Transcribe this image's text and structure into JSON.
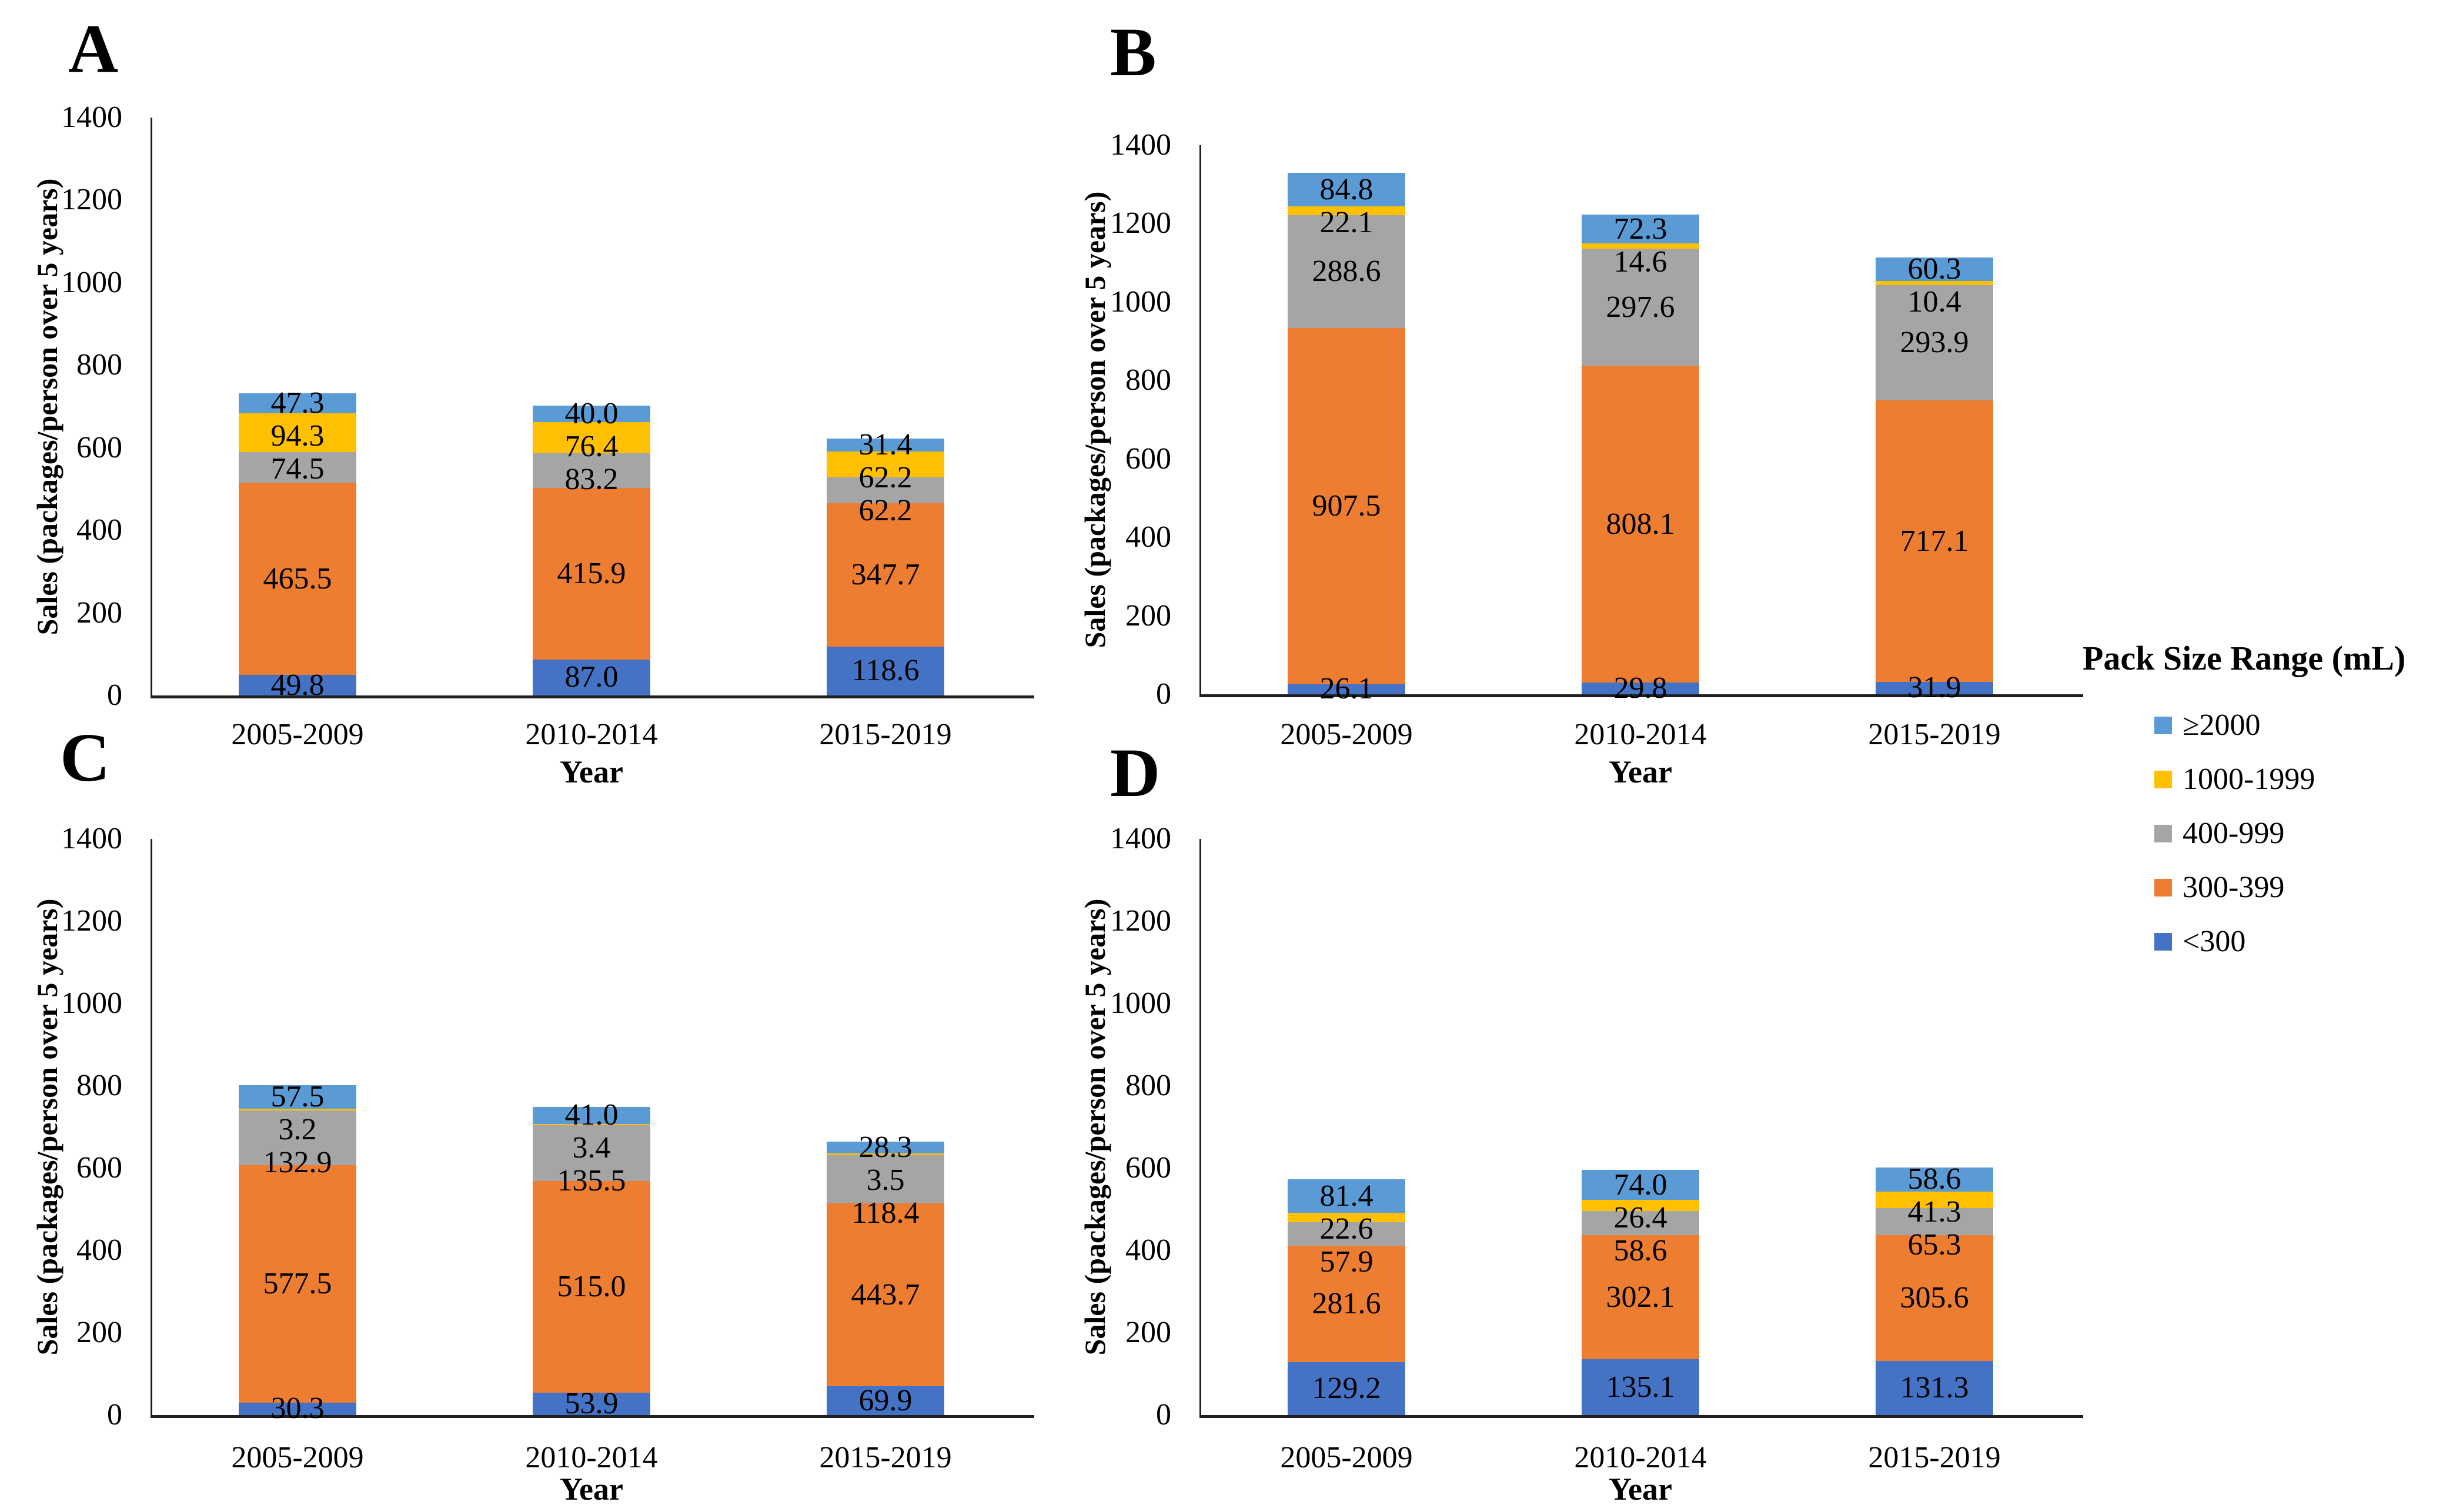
{
  "page": {
    "background": "#ffffff"
  },
  "legend": {
    "title": "Pack Size Range (mL)",
    "items": [
      {
        "label": "≥2000",
        "color": "#5B9BD5"
      },
      {
        "label": "1000-1999",
        "color": "#FFC000"
      },
      {
        "label": "400-999",
        "color": "#A5A5A5"
      },
      {
        "label": "300-399",
        "color": "#ED7D31"
      },
      {
        "label": "<300",
        "color": "#4472C4"
      }
    ]
  },
  "chart_data": [
    {
      "panel": "A",
      "type": "bar",
      "stacked": true,
      "stack_order": "first series at bottom",
      "categories": [
        "2005-2009",
        "2010-2014",
        "2015-2019"
      ],
      "series": [
        {
          "name": "<300",
          "color": "#4472C4",
          "values": [
            49.8,
            87.0,
            118.6
          ],
          "labels": [
            "49.8",
            "87.0",
            "118.6"
          ]
        },
        {
          "name": "300-399",
          "color": "#ED7D31",
          "values": [
            465.5,
            415.9,
            347.7
          ],
          "labels": [
            "465.5",
            "415.9",
            "347.7"
          ]
        },
        {
          "name": "400-999",
          "color": "#A5A5A5",
          "values": [
            74.5,
            83.2,
            62.2
          ],
          "labels": [
            "74.5",
            "83.2",
            "62.2"
          ]
        },
        {
          "name": "1000-1999",
          "color": "#FFC000",
          "values": [
            94.3,
            76.4,
            62.2
          ],
          "labels": [
            "94.3",
            "76.4",
            "62.2"
          ]
        },
        {
          "name": "≥2000",
          "color": "#5B9BD5",
          "values": [
            47.3,
            40.0,
            31.4
          ],
          "labels": [
            "47.3",
            "40.0",
            "31.4"
          ]
        }
      ],
      "xlabel": "Year",
      "ylabel": "Sales (packages/person over 5 years)",
      "ylim": [
        0,
        1400
      ],
      "ytick_step": 200,
      "ytick_labels": [
        "0",
        "200",
        "400",
        "600",
        "800",
        "1000",
        "1200",
        "1400"
      ],
      "grid": false,
      "legend_position": "outside-right"
    },
    {
      "panel": "B",
      "type": "bar",
      "stacked": true,
      "stack_order": "first series at bottom",
      "categories": [
        "2005-2009",
        "2010-2014",
        "2015-2019"
      ],
      "series": [
        {
          "name": "<300",
          "color": "#4472C4",
          "values": [
            26.1,
            29.8,
            31.9
          ],
          "labels": [
            "26.1",
            "29.8",
            "31.9"
          ]
        },
        {
          "name": "300-399",
          "color": "#ED7D31",
          "values": [
            907.5,
            808.1,
            717.1
          ],
          "labels": [
            "907.5",
            "808.1",
            "717.1"
          ]
        },
        {
          "name": "400-999",
          "color": "#A5A5A5",
          "values": [
            288.6,
            297.6,
            293.9
          ],
          "labels": [
            "288.6",
            "297.6",
            "293.9"
          ]
        },
        {
          "name": "1000-1999",
          "color": "#FFC000",
          "values": [
            22.1,
            14.6,
            10.4
          ],
          "labels": [
            "22.1",
            "14.6",
            "10.4"
          ]
        },
        {
          "name": "≥2000",
          "color": "#5B9BD5",
          "values": [
            84.8,
            72.3,
            60.3
          ],
          "labels": [
            "84.8",
            "72.3",
            "60.3"
          ]
        }
      ],
      "xlabel": "Year",
      "ylabel": "Sales (packages/person over 5 years)",
      "ylim": [
        0,
        1400
      ],
      "ytick_step": 200,
      "ytick_labels": [
        "0",
        "200",
        "400",
        "600",
        "800",
        "1000",
        "1200",
        "1400"
      ],
      "grid": false,
      "legend_position": "outside-right"
    },
    {
      "panel": "C",
      "type": "bar",
      "stacked": true,
      "stack_order": "first series at bottom",
      "categories": [
        "2005-2009",
        "2010-2014",
        "2015-2019"
      ],
      "series": [
        {
          "name": "<300",
          "color": "#4472C4",
          "values": [
            30.3,
            53.9,
            69.9
          ],
          "labels": [
            "30.3",
            "53.9",
            "69.9"
          ]
        },
        {
          "name": "300-399",
          "color": "#ED7D31",
          "values": [
            577.5,
            515.0,
            443.7
          ],
          "labels": [
            "577.5",
            "515.0",
            "443.7"
          ]
        },
        {
          "name": "400-999",
          "color": "#A5A5A5",
          "values": [
            132.9,
            135.5,
            118.4
          ],
          "labels": [
            "132.9",
            "135.5",
            "118.4"
          ]
        },
        {
          "name": "1000-1999",
          "color": "#FFC000",
          "values": [
            3.2,
            3.4,
            3.5
          ],
          "labels": [
            "3.2",
            "3.4",
            "3.5"
          ]
        },
        {
          "name": "≥2000",
          "color": "#5B9BD5",
          "values": [
            57.5,
            41.0,
            28.3
          ],
          "labels": [
            "57.5",
            "41.0",
            "28.3"
          ]
        }
      ],
      "xlabel": "Year",
      "ylabel": "Sales (packages/person over 5 years)",
      "ylim": [
        0,
        1400
      ],
      "ytick_step": 200,
      "ytick_labels": [
        "0",
        "200",
        "400",
        "600",
        "800",
        "1000",
        "1200",
        "1400"
      ],
      "grid": false,
      "legend_position": "outside-right"
    },
    {
      "panel": "D",
      "type": "bar",
      "stacked": true,
      "stack_order": "first series at bottom",
      "categories": [
        "2005-2009",
        "2010-2014",
        "2015-2019"
      ],
      "series": [
        {
          "name": "<300",
          "color": "#4472C4",
          "values": [
            129.2,
            135.1,
            131.3
          ],
          "labels": [
            "129.2",
            "135.1",
            "131.3"
          ]
        },
        {
          "name": "300-399",
          "color": "#ED7D31",
          "values": [
            281.6,
            302.1,
            305.6
          ],
          "labels": [
            "281.6",
            "302.1",
            "305.6"
          ]
        },
        {
          "name": "400-999",
          "color": "#A5A5A5",
          "values": [
            57.9,
            58.6,
            65.3
          ],
          "labels": [
            "57.9",
            "58.6",
            "65.3"
          ]
        },
        {
          "name": "1000-1999",
          "color": "#FFC000",
          "values": [
            22.6,
            26.4,
            41.3
          ],
          "labels": [
            "22.6",
            "26.4",
            "41.3"
          ]
        },
        {
          "name": "≥2000",
          "color": "#5B9BD5",
          "values": [
            81.4,
            74.0,
            58.6
          ],
          "labels": [
            "81.4",
            "74.0",
            "58.6"
          ]
        }
      ],
      "xlabel": "Year",
      "ylabel": "Sales (packages/person over 5 years)",
      "ylim": [
        0,
        1400
      ],
      "ytick_step": 200,
      "ytick_labels": [
        "0",
        "200",
        "400",
        "600",
        "800",
        "1000",
        "1200",
        "1400"
      ],
      "grid": false,
      "legend_position": "outside-right"
    }
  ]
}
